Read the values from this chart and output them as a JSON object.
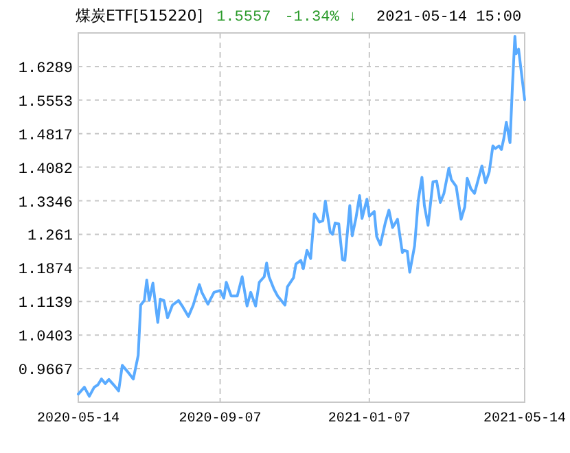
{
  "chart_data": {
    "type": "line",
    "title": "煤炭ETF[515220]",
    "annotations": [
      "1.5557",
      "-1.34% ↓",
      "2021-05-14 15:00"
    ],
    "xlim": [
      "2020-05-14",
      "2021-05-14"
    ],
    "xticks": [
      "2020-05-14",
      "2020-09-07",
      "2021-01-07",
      "2021-05-14"
    ],
    "ylim": [
      0.8931,
      1.7025
    ],
    "yticks": [
      0.9667,
      1.0403,
      1.1139,
      1.1874,
      1.261,
      1.3346,
      1.4082,
      1.4817,
      1.5553,
      1.6289
    ],
    "grid": true,
    "line_style": "solid",
    "series": [
      {
        "color": "#5aabff",
        "x": [
          "2020-05-14",
          "2020-05-19",
          "2020-05-23",
          "2020-05-27",
          "2020-05-30",
          "2020-06-02",
          "2020-06-05",
          "2020-06-08",
          "2020-06-12",
          "2020-06-16",
          "2020-06-19",
          "2020-06-23",
          "2020-06-28",
          "2020-07-02",
          "2020-07-04",
          "2020-07-07",
          "2020-07-09",
          "2020-07-11",
          "2020-07-14",
          "2020-07-18",
          "2020-07-20",
          "2020-07-23",
          "2020-07-26",
          "2020-07-30",
          "2020-08-04",
          "2020-08-07",
          "2020-08-12",
          "2020-08-16",
          "2020-08-21",
          "2020-08-23",
          "2020-08-28",
          "2020-09-02",
          "2020-09-07",
          "2020-09-10",
          "2020-09-12",
          "2020-09-16",
          "2020-09-21",
          "2020-09-25",
          "2020-09-29",
          "2020-10-02",
          "2020-10-06",
          "2020-10-09",
          "2020-10-13",
          "2020-10-15",
          "2020-10-17",
          "2020-10-21",
          "2020-10-24",
          "2020-10-30",
          "2020-11-01",
          "2020-11-06",
          "2020-11-08",
          "2020-11-12",
          "2020-11-14",
          "2020-11-17",
          "2020-11-20",
          "2020-11-23",
          "2020-11-27",
          "2020-11-30",
          "2020-12-02",
          "2020-12-06",
          "2020-12-08",
          "2020-12-10",
          "2020-12-13",
          "2020-12-16",
          "2020-12-18",
          "2020-12-22",
          "2020-12-24",
          "2020-12-27",
          "2020-12-30",
          "2021-01-01",
          "2021-01-05",
          "2021-01-07",
          "2021-01-11",
          "2021-01-13",
          "2021-01-16",
          "2021-01-20",
          "2021-01-23",
          "2021-01-26",
          "2021-01-30",
          "2021-02-03",
          "2021-02-04",
          "2021-02-07",
          "2021-02-09",
          "2021-02-13",
          "2021-02-16",
          "2021-02-19",
          "2021-02-21",
          "2021-02-24",
          "2021-02-28",
          "2021-03-03",
          "2021-03-06",
          "2021-03-09",
          "2021-03-13",
          "2021-03-15",
          "2021-03-19",
          "2021-03-23",
          "2021-03-26",
          "2021-03-28",
          "2021-03-31",
          "2021-04-03",
          "2021-04-07",
          "2021-04-09",
          "2021-04-12",
          "2021-04-15",
          "2021-04-18",
          "2021-04-20",
          "2021-04-23",
          "2021-04-25",
          "2021-04-27",
          "2021-04-29",
          "2021-05-02",
          "2021-05-04",
          "2021-05-06",
          "2021-05-07",
          "2021-05-09",
          "2021-05-14"
        ],
        "values": [
          0.911,
          0.926,
          0.906,
          0.926,
          0.931,
          0.944,
          0.934,
          0.943,
          0.931,
          0.918,
          0.974,
          0.961,
          0.944,
          0.996,
          1.106,
          1.116,
          1.161,
          1.116,
          1.154,
          1.068,
          1.119,
          1.116,
          1.078,
          1.106,
          1.116,
          1.104,
          1.081,
          1.106,
          1.151,
          1.134,
          1.108,
          1.134,
          1.138,
          1.121,
          1.156,
          1.126,
          1.126,
          1.168,
          1.104,
          1.134,
          1.104,
          1.156,
          1.168,
          1.198,
          1.168,
          1.141,
          1.126,
          1.106,
          1.146,
          1.166,
          1.196,
          1.204,
          1.186,
          1.226,
          1.208,
          1.306,
          1.288,
          1.291,
          1.334,
          1.266,
          1.261,
          1.286,
          1.284,
          1.206,
          1.204,
          1.324,
          1.258,
          1.296,
          1.346,
          1.296,
          1.338,
          1.301,
          1.311,
          1.256,
          1.238,
          1.286,
          1.314,
          1.276,
          1.294,
          1.221,
          1.226,
          1.224,
          1.178,
          1.236,
          1.336,
          1.386,
          1.324,
          1.281,
          1.376,
          1.378,
          1.331,
          1.351,
          1.406,
          1.381,
          1.366,
          1.294,
          1.321,
          1.384,
          1.361,
          1.351,
          1.391,
          1.411,
          1.374,
          1.398,
          1.455,
          1.449,
          1.455,
          1.447,
          1.472,
          1.507,
          1.462,
          1.587,
          1.695,
          1.657,
          1.667,
          1.556
        ]
      }
    ]
  }
}
